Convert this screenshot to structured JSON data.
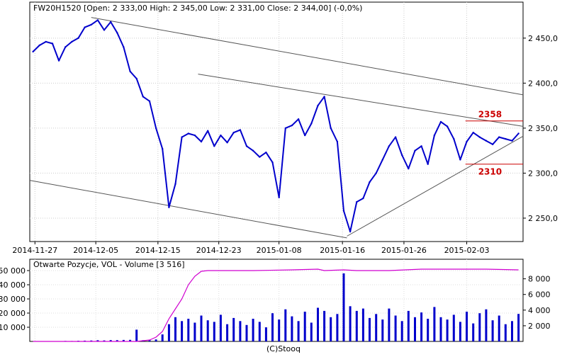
{
  "chart_data": [
    {
      "type": "line",
      "title": "FW20H1520 [Open: 2 333,00  High: 2 345,00  Low: 2 331,00  Close: 2 344,00] (-0,0%)",
      "xlabel": "",
      "ylabel": "",
      "ylim": [
        2224,
        2490
      ],
      "y_ticks": [
        2250,
        2300,
        2350,
        2400,
        2450
      ],
      "y_tick_labels": [
        "2 250,0",
        "2 300,0",
        "2 350,0",
        "2 400,0",
        "2 450,0"
      ],
      "x_tick_labels": [
        "2014-11-27",
        "2014-12-05",
        "2014-12-15",
        "2014-12-23",
        "2015-01-08",
        "2015-01-16",
        "2015-01-26",
        "2015-02-03"
      ],
      "x_tick_positions": [
        0.3,
        9.7,
        19.3,
        28.7,
        38.0,
        47.8,
        57.3,
        67.0
      ],
      "x_range": [
        -0.5,
        75.7
      ],
      "series": [
        {
          "color": "#0000cc",
          "x": [
            0,
            1,
            2,
            3,
            4,
            5,
            6,
            7,
            8,
            9,
            10,
            11,
            12,
            13,
            14,
            15,
            16,
            17,
            18,
            19,
            20,
            21,
            22,
            23,
            24,
            25,
            26,
            27,
            28,
            29,
            30,
            31,
            32,
            33,
            34,
            35,
            36,
            37,
            38,
            39,
            40,
            41,
            42,
            43,
            44,
            45,
            46,
            47,
            48,
            49,
            50,
            51,
            52,
            53,
            54,
            55,
            56,
            57,
            58,
            59,
            60,
            61,
            62,
            63,
            64,
            65,
            66,
            67,
            68,
            69,
            70,
            71,
            72,
            73,
            74,
            75
          ],
          "y": [
            2435,
            2442,
            2446,
            2444,
            2425,
            2440,
            2446,
            2450,
            2462,
            2465,
            2470,
            2459,
            2468,
            2456,
            2440,
            2413,
            2405,
            2385,
            2380,
            2350,
            2327,
            2262,
            2288,
            2340,
            2344,
            2342,
            2335,
            2347,
            2330,
            2342,
            2334,
            2345,
            2348,
            2330,
            2325,
            2318,
            2323,
            2312,
            2273,
            2350,
            2353,
            2360,
            2342,
            2355,
            2375,
            2385,
            2350,
            2335,
            2258,
            2235,
            2268,
            2272,
            2290,
            2300,
            2315,
            2330,
            2340,
            2320,
            2305,
            2325,
            2330,
            2310,
            2342,
            2357,
            2352,
            2338,
            2315,
            2335,
            2345,
            2340,
            2336,
            2332,
            2340,
            2338,
            2336,
            2344
          ]
        }
      ],
      "trendlines": [
        {
          "x": [
            9.0,
            75.7
          ],
          "y": [
            2473,
            2387
          ]
        },
        {
          "x": [
            25.5,
            75.7
          ],
          "y": [
            2410,
            2352
          ]
        },
        {
          "x": [
            -0.5,
            48.5
          ],
          "y": [
            2292,
            2228
          ]
        },
        {
          "x": [
            48.5,
            75.7
          ],
          "y": [
            2230,
            2341
          ]
        }
      ],
      "levels": [
        {
          "value": 2358,
          "label": "2358",
          "x_from": 66.8,
          "x_to": 75.7,
          "color": "#cc0000"
        },
        {
          "value": 2310,
          "label": "2310",
          "x_from": 66.8,
          "x_to": 75.7,
          "color": "#cc0000"
        }
      ]
    },
    {
      "type": "bar",
      "title": "Otwarte Pozycje, VOL - Volume [3 516]",
      "ylim": [
        0,
        58000
      ],
      "y_ticks": [
        10000,
        20000,
        30000,
        40000,
        50000
      ],
      "y_tick_labels": [
        "10 000",
        "20 000",
        "30 000",
        "40 000",
        "50 000"
      ],
      "y2lim": [
        0,
        10500
      ],
      "y2_ticks": [
        2000,
        4000,
        6000,
        8000
      ],
      "y2_tick_labels": [
        "2 000",
        "4 000",
        "6 000",
        "8 000"
      ],
      "x_range": [
        -0.5,
        75.7
      ],
      "series": [
        {
          "name": "Otwarte Pozycje",
          "color": "#d000d0",
          "axis": "left",
          "x": [
            0,
            4,
            8,
            12,
            16,
            18,
            19,
            20,
            21,
            22,
            23,
            24,
            25,
            26,
            27,
            28,
            30,
            34,
            40,
            44,
            45,
            48,
            50,
            55,
            60,
            65,
            70,
            75
          ],
          "y": [
            0,
            0,
            0,
            0,
            0,
            1000,
            3000,
            7000,
            16000,
            23000,
            30000,
            40000,
            46000,
            49500,
            50000,
            50000,
            50000,
            50000,
            50500,
            51000,
            50000,
            50500,
            50000,
            50000,
            51000,
            51000,
            51000,
            50500
          ]
        },
        {
          "name": "VOL",
          "color": "#0000cc",
          "axis": "right",
          "x": [
            0,
            1,
            2,
            3,
            4,
            5,
            6,
            7,
            8,
            9,
            10,
            11,
            12,
            13,
            14,
            15,
            16,
            17,
            18,
            19,
            20,
            21,
            22,
            23,
            24,
            25,
            26,
            27,
            28,
            29,
            30,
            31,
            32,
            33,
            34,
            35,
            36,
            37,
            38,
            39,
            40,
            41,
            42,
            43,
            44,
            45,
            46,
            47,
            48,
            49,
            50,
            51,
            52,
            53,
            54,
            55,
            56,
            57,
            58,
            59,
            60,
            61,
            62,
            63,
            64,
            65,
            66,
            67,
            68,
            69,
            70,
            71,
            72,
            73,
            74,
            75
          ],
          "y": [
            0,
            20,
            30,
            20,
            40,
            60,
            50,
            80,
            100,
            120,
            150,
            130,
            170,
            160,
            190,
            200,
            1500,
            150,
            180,
            250,
            900,
            2200,
            3100,
            2600,
            2900,
            2400,
            3300,
            2700,
            2500,
            3400,
            2200,
            3000,
            2600,
            2100,
            2900,
            2500,
            1800,
            3600,
            2800,
            4100,
            3200,
            2600,
            3800,
            2400,
            4300,
            3900,
            3100,
            3500,
            8700,
            4500,
            3900,
            4200,
            3000,
            3500,
            2800,
            4200,
            3300,
            2600,
            3900,
            3100,
            3700,
            2900,
            4400,
            3100,
            2800,
            3400,
            2500,
            3800,
            2300,
            3600,
            4100,
            2700,
            3300,
            2200,
            2600,
            3516
          ]
        }
      ]
    }
  ],
  "footer": {
    "text": "(C)Stooq"
  }
}
